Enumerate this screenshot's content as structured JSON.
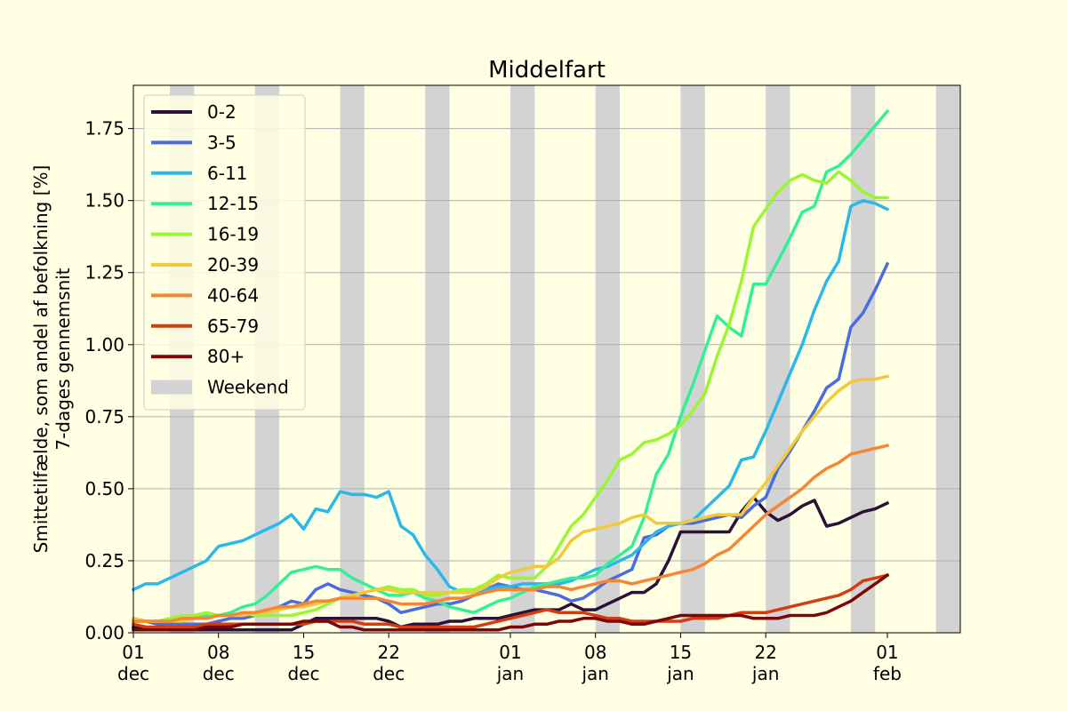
{
  "chart_data": {
    "type": "line",
    "title": "Middelfart",
    "ylabel": [
      "Smittetilfælde, som andel af befolkning [%]",
      "7-dages gennemsnit"
    ],
    "xlim": [
      "2021-12-01",
      "2022-02-07"
    ],
    "ylim": [
      0,
      1.9
    ],
    "grid": "y",
    "legend_position": "top-left",
    "x_ticks": [
      {
        "date": "2021-12-01",
        "label": [
          "01",
          "dec"
        ]
      },
      {
        "date": "2021-12-08",
        "label": [
          "08",
          "dec"
        ]
      },
      {
        "date": "2021-12-15",
        "label": [
          "15",
          "dec"
        ]
      },
      {
        "date": "2021-12-22",
        "label": [
          "22",
          "dec"
        ]
      },
      {
        "date": "2022-01-01",
        "label": [
          "01",
          "jan"
        ]
      },
      {
        "date": "2022-01-08",
        "label": [
          "08",
          "jan"
        ]
      },
      {
        "date": "2022-01-15",
        "label": [
          "15",
          "jan"
        ]
      },
      {
        "date": "2022-01-22",
        "label": [
          "22",
          "jan"
        ]
      },
      {
        "date": "2022-02-01",
        "label": [
          "01",
          "feb"
        ]
      }
    ],
    "y_ticks": [
      "0.00",
      "0.25",
      "0.50",
      "0.75",
      "1.00",
      "1.25",
      "1.50",
      "1.75"
    ],
    "weekend_label": "Weekend",
    "weekend_color": "#d3d3d3",
    "weekends": [
      [
        "2021-12-04",
        "2021-12-06"
      ],
      [
        "2021-12-11",
        "2021-12-13"
      ],
      [
        "2021-12-18",
        "2021-12-20"
      ],
      [
        "2021-12-25",
        "2021-12-27"
      ],
      [
        "2022-01-01",
        "2022-01-03"
      ],
      [
        "2022-01-08",
        "2022-01-10"
      ],
      [
        "2022-01-15",
        "2022-01-17"
      ],
      [
        "2022-01-22",
        "2022-01-24"
      ],
      [
        "2022-01-29",
        "2022-01-31"
      ],
      [
        "2022-02-05",
        "2022-02-07"
      ]
    ],
    "x_start": "2021-12-01",
    "x_step_days": 1,
    "series": [
      {
        "name": "0-2",
        "color": "#2b1038",
        "values": [
          0.02,
          0.01,
          0.01,
          0.01,
          0.01,
          0.01,
          0.01,
          0.01,
          0.01,
          0.01,
          0.01,
          0.01,
          0.01,
          0.01,
          0.03,
          0.05,
          0.05,
          0.05,
          0.05,
          0.05,
          0.05,
          0.04,
          0.02,
          0.03,
          0.03,
          0.03,
          0.04,
          0.04,
          0.05,
          0.05,
          0.05,
          0.06,
          0.07,
          0.08,
          0.08,
          0.08,
          0.1,
          0.08,
          0.08,
          0.1,
          0.12,
          0.14,
          0.14,
          0.17,
          0.25,
          0.35,
          0.35,
          0.35,
          0.35,
          0.35,
          0.42,
          0.47,
          0.42,
          0.39,
          0.41,
          0.44,
          0.46,
          0.37,
          0.38,
          0.4,
          0.42,
          0.43,
          0.45
        ]
      },
      {
        "name": "3-5",
        "color": "#4b6be0",
        "values": [
          0.05,
          0.04,
          0.03,
          0.03,
          0.03,
          0.03,
          0.03,
          0.04,
          0.05,
          0.05,
          0.06,
          0.07,
          0.09,
          0.11,
          0.1,
          0.15,
          0.17,
          0.15,
          0.14,
          0.13,
          0.12,
          0.1,
          0.07,
          0.08,
          0.09,
          0.1,
          0.1,
          0.11,
          0.13,
          0.15,
          0.17,
          0.16,
          0.15,
          0.15,
          0.14,
          0.13,
          0.11,
          0.12,
          0.15,
          0.18,
          0.2,
          0.22,
          0.33,
          0.34,
          0.37,
          0.38,
          0.38,
          0.39,
          0.4,
          0.41,
          0.4,
          0.44,
          0.47,
          0.57,
          0.63,
          0.7,
          0.77,
          0.85,
          0.88,
          1.06,
          1.11,
          1.19,
          1.28
        ]
      },
      {
        "name": "6-11",
        "color": "#2ab8eb",
        "values": [
          0.15,
          0.17,
          0.17,
          0.19,
          0.21,
          0.23,
          0.25,
          0.3,
          0.31,
          0.32,
          0.34,
          0.36,
          0.38,
          0.41,
          0.36,
          0.43,
          0.42,
          0.49,
          0.48,
          0.48,
          0.47,
          0.49,
          0.37,
          0.34,
          0.27,
          0.22,
          0.16,
          0.14,
          0.14,
          0.15,
          0.16,
          0.16,
          0.17,
          0.17,
          0.17,
          0.17,
          0.18,
          0.2,
          0.22,
          0.23,
          0.25,
          0.27,
          0.31,
          0.35,
          0.37,
          0.38,
          0.39,
          0.43,
          0.47,
          0.51,
          0.6,
          0.61,
          0.7,
          0.8,
          0.9,
          1.0,
          1.12,
          1.22,
          1.29,
          1.48,
          1.5,
          1.49,
          1.47
        ]
      },
      {
        "name": "12-15",
        "color": "#33ef95",
        "values": [
          0.04,
          0.04,
          0.04,
          0.04,
          0.05,
          0.05,
          0.06,
          0.06,
          0.07,
          0.09,
          0.1,
          0.13,
          0.17,
          0.21,
          0.22,
          0.23,
          0.22,
          0.22,
          0.19,
          0.17,
          0.15,
          0.13,
          0.13,
          0.14,
          0.12,
          0.11,
          0.09,
          0.08,
          0.07,
          0.09,
          0.11,
          0.12,
          0.14,
          0.16,
          0.17,
          0.18,
          0.19,
          0.19,
          0.2,
          0.24,
          0.27,
          0.3,
          0.4,
          0.55,
          0.62,
          0.75,
          0.86,
          0.98,
          1.1,
          1.06,
          1.03,
          1.21,
          1.21,
          1.29,
          1.37,
          1.46,
          1.48,
          1.6,
          1.62,
          1.66,
          1.71,
          1.76,
          1.81
        ]
      },
      {
        "name": "16-19",
        "color": "#9bf535",
        "values": [
          0.04,
          0.04,
          0.04,
          0.05,
          0.06,
          0.06,
          0.07,
          0.06,
          0.06,
          0.07,
          0.06,
          0.06,
          0.06,
          0.06,
          0.07,
          0.08,
          0.1,
          0.12,
          0.13,
          0.14,
          0.15,
          0.16,
          0.15,
          0.15,
          0.13,
          0.13,
          0.14,
          0.15,
          0.15,
          0.17,
          0.2,
          0.19,
          0.19,
          0.19,
          0.23,
          0.3,
          0.37,
          0.41,
          0.47,
          0.53,
          0.6,
          0.62,
          0.66,
          0.67,
          0.69,
          0.72,
          0.77,
          0.83,
          0.96,
          1.07,
          1.22,
          1.41,
          1.47,
          1.53,
          1.57,
          1.59,
          1.57,
          1.56,
          1.6,
          1.57,
          1.53,
          1.51,
          1.51
        ]
      },
      {
        "name": "20-39",
        "color": "#f1c93a",
        "values": [
          0.05,
          0.04,
          0.04,
          0.04,
          0.04,
          0.05,
          0.05,
          0.06,
          0.06,
          0.06,
          0.07,
          0.07,
          0.08,
          0.09,
          0.09,
          0.1,
          0.11,
          0.12,
          0.13,
          0.14,
          0.15,
          0.15,
          0.14,
          0.14,
          0.14,
          0.14,
          0.14,
          0.14,
          0.14,
          0.16,
          0.19,
          0.21,
          0.22,
          0.23,
          0.23,
          0.26,
          0.32,
          0.35,
          0.36,
          0.37,
          0.38,
          0.4,
          0.41,
          0.38,
          0.38,
          0.38,
          0.39,
          0.4,
          0.41,
          0.41,
          0.41,
          0.47,
          0.52,
          0.58,
          0.64,
          0.7,
          0.75,
          0.8,
          0.84,
          0.87,
          0.88,
          0.88,
          0.89
        ]
      },
      {
        "name": "40-64",
        "color": "#f58634",
        "values": [
          0.04,
          0.04,
          0.04,
          0.04,
          0.05,
          0.05,
          0.05,
          0.06,
          0.06,
          0.07,
          0.07,
          0.08,
          0.09,
          0.09,
          0.1,
          0.11,
          0.11,
          0.12,
          0.12,
          0.12,
          0.12,
          0.11,
          0.1,
          0.1,
          0.1,
          0.11,
          0.12,
          0.12,
          0.13,
          0.14,
          0.15,
          0.15,
          0.15,
          0.15,
          0.16,
          0.16,
          0.15,
          0.16,
          0.17,
          0.18,
          0.18,
          0.17,
          0.18,
          0.19,
          0.2,
          0.21,
          0.22,
          0.24,
          0.27,
          0.29,
          0.33,
          0.37,
          0.41,
          0.44,
          0.47,
          0.5,
          0.54,
          0.57,
          0.59,
          0.62,
          0.63,
          0.64,
          0.65
        ]
      },
      {
        "name": "65-79",
        "color": "#d43c11",
        "values": [
          0.03,
          0.02,
          0.02,
          0.02,
          0.02,
          0.02,
          0.03,
          0.03,
          0.03,
          0.03,
          0.03,
          0.03,
          0.03,
          0.03,
          0.03,
          0.04,
          0.04,
          0.04,
          0.04,
          0.03,
          0.03,
          0.03,
          0.02,
          0.02,
          0.02,
          0.02,
          0.02,
          0.02,
          0.02,
          0.03,
          0.04,
          0.05,
          0.06,
          0.07,
          0.08,
          0.07,
          0.07,
          0.07,
          0.06,
          0.05,
          0.05,
          0.04,
          0.04,
          0.04,
          0.04,
          0.04,
          0.05,
          0.05,
          0.05,
          0.06,
          0.07,
          0.07,
          0.07,
          0.08,
          0.09,
          0.1,
          0.11,
          0.12,
          0.13,
          0.15,
          0.18,
          0.19,
          0.2
        ]
      },
      {
        "name": "80+",
        "color": "#7a0808",
        "values": [
          0.01,
          0.01,
          0.01,
          0.01,
          0.01,
          0.01,
          0.02,
          0.02,
          0.02,
          0.03,
          0.03,
          0.03,
          0.03,
          0.03,
          0.04,
          0.04,
          0.04,
          0.02,
          0.02,
          0.01,
          0.01,
          0.01,
          0.01,
          0.01,
          0.01,
          0.01,
          0.01,
          0.01,
          0.01,
          0.01,
          0.01,
          0.02,
          0.02,
          0.03,
          0.03,
          0.04,
          0.04,
          0.05,
          0.05,
          0.04,
          0.04,
          0.03,
          0.03,
          0.04,
          0.05,
          0.06,
          0.06,
          0.06,
          0.06,
          0.06,
          0.06,
          0.05,
          0.05,
          0.05,
          0.06,
          0.06,
          0.06,
          0.07,
          0.09,
          0.11,
          0.14,
          0.17,
          0.2
        ]
      }
    ]
  }
}
